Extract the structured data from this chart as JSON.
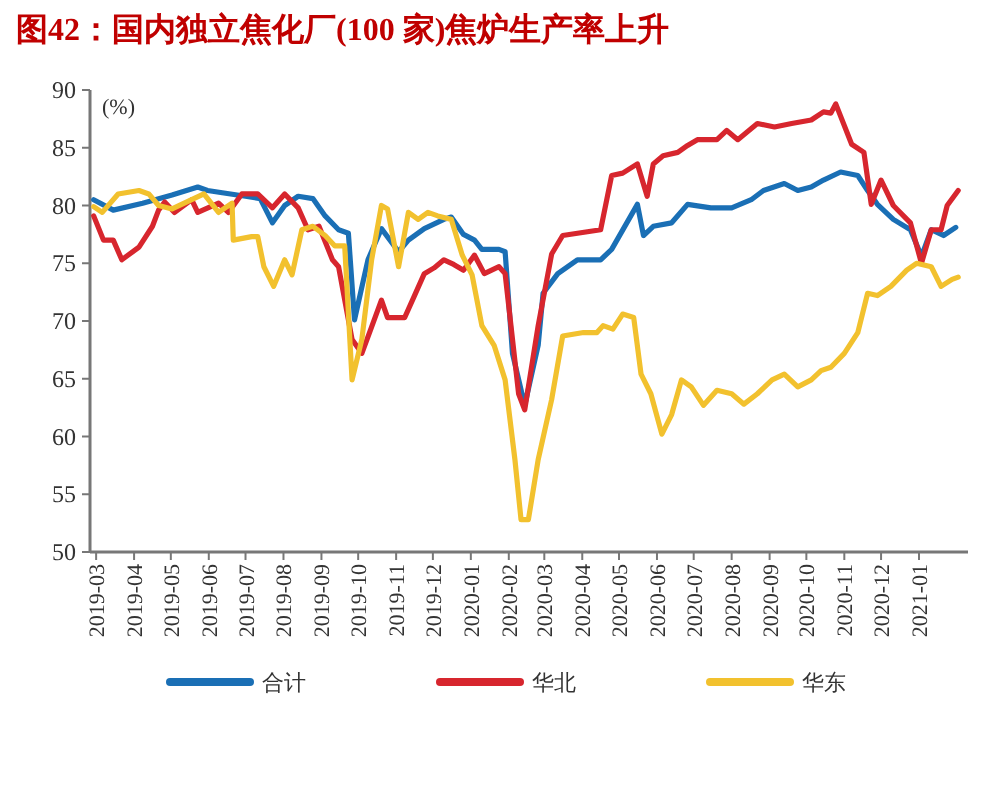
{
  "chart_data": {
    "type": "line",
    "title": "图42：国内独立焦化厂(100 家)焦炉生产率上升",
    "ylabel": "(%)",
    "xlim": [
      "2019-02-24",
      "2021-02-10"
    ],
    "ylim": [
      50,
      90
    ],
    "yticks": [
      50,
      55,
      60,
      65,
      70,
      75,
      80,
      85,
      90
    ],
    "xticks": [
      "2019-03",
      "2019-04",
      "2019-05",
      "2019-06",
      "2019-07",
      "2019-08",
      "2019-09",
      "2019-10",
      "2019-11",
      "2019-12",
      "2020-01",
      "2020-02",
      "2020-03",
      "2020-04",
      "2020-05",
      "2020-06",
      "2020-07",
      "2020-08",
      "2020-09",
      "2020-10",
      "2020-11",
      "2020-12",
      "2021-01"
    ],
    "grid": false,
    "legend": "bottom",
    "marker": "none",
    "line_style": "solid",
    "series": [
      {
        "name": "合计",
        "color": "#1a6fb5",
        "x": [
          "2019-02-27",
          "2019-03-15",
          "2019-04-08",
          "2019-05-02",
          "2019-05-23",
          "2019-05-31",
          "2019-06-12",
          "2019-07-01",
          "2019-07-13",
          "2019-07-23",
          "2019-08-02",
          "2019-08-13",
          "2019-08-25",
          "2019-09-04",
          "2019-09-15",
          "2019-09-23",
          "2019-09-28",
          "2019-10-09",
          "2019-10-20",
          "2019-11-03",
          "2019-11-11",
          "2019-11-24",
          "2019-12-10",
          "2019-12-16",
          "2019-12-26",
          "2020-01-04",
          "2020-01-10",
          "2020-01-24",
          "2020-01-29",
          "2020-02-04",
          "2020-02-14",
          "2020-02-25",
          "2020-02-29",
          "2020-03-12",
          "2020-03-28",
          "2020-04-16",
          "2020-04-25",
          "2020-05-16",
          "2020-05-21",
          "2020-05-29",
          "2020-06-13",
          "2020-06-26",
          "2020-07-15",
          "2020-08-01",
          "2020-08-17",
          "2020-08-27",
          "2020-09-13",
          "2020-09-24",
          "2020-10-05",
          "2020-10-15",
          "2020-10-29",
          "2020-11-12",
          "2020-11-20",
          "2020-11-28",
          "2020-12-11",
          "2020-12-25",
          "2021-01-03",
          "2021-01-11",
          "2021-01-21",
          "2021-01-31"
        ],
        "values": [
          80.5,
          79.6,
          80.2,
          80.9,
          81.6,
          81.3,
          81.1,
          80.8,
          80.6,
          78.5,
          80.0,
          80.8,
          80.6,
          79.1,
          77.9,
          77.6,
          70.1,
          75.3,
          78.0,
          76.0,
          77.0,
          78.0,
          78.8,
          79.0,
          77.5,
          77.0,
          76.2,
          76.2,
          76.0,
          67.2,
          62.7,
          67.9,
          72.4,
          74.1,
          75.3,
          75.3,
          76.2,
          80.1,
          77.4,
          78.2,
          78.5,
          80.1,
          79.8,
          79.8,
          80.5,
          81.3,
          81.9,
          81.3,
          81.6,
          82.2,
          82.9,
          82.6,
          81.3,
          80.1,
          78.8,
          77.9,
          75.6,
          77.9,
          77.4,
          78.1
        ]
      },
      {
        "name": "华北",
        "color": "#d7262e",
        "x": [
          "2019-02-27",
          "2019-03-07",
          "2019-03-15",
          "2019-03-22",
          "2019-04-05",
          "2019-04-16",
          "2019-04-21",
          "2019-04-26",
          "2019-05-04",
          "2019-05-18",
          "2019-05-23",
          "2019-06-09",
          "2019-06-17",
          "2019-06-28",
          "2019-07-11",
          "2019-07-23",
          "2019-08-02",
          "2019-08-13",
          "2019-08-21",
          "2019-08-30",
          "2019-09-10",
          "2019-09-15",
          "2019-09-26",
          "2019-10-04",
          "2019-10-12",
          "2019-10-20",
          "2019-10-25",
          "2019-11-08",
          "2019-11-16",
          "2019-11-24",
          "2019-12-02",
          "2019-12-10",
          "2019-12-18",
          "2019-12-26",
          "2020-01-04",
          "2020-01-12",
          "2020-01-24",
          "2020-01-29",
          "2020-02-09",
          "2020-02-14",
          "2020-02-25",
          "2020-03-07",
          "2020-03-16",
          "2020-04-16",
          "2020-04-25",
          "2020-05-04",
          "2020-05-16",
          "2020-05-24",
          "2020-05-29",
          "2020-06-06",
          "2020-06-18",
          "2020-06-26",
          "2020-07-04",
          "2020-07-20",
          "2020-07-28",
          "2020-08-06",
          "2020-08-22",
          "2020-09-05",
          "2020-09-19",
          "2020-10-05",
          "2020-10-15",
          "2020-10-21",
          "2020-10-25",
          "2020-11-07",
          "2020-11-17",
          "2020-11-23",
          "2020-12-01",
          "2020-12-11",
          "2020-12-25",
          "2021-01-03",
          "2021-01-11",
          "2021-01-19",
          "2021-01-24",
          "2021-02-02"
        ],
        "values": [
          79.1,
          77.0,
          77.0,
          75.3,
          76.4,
          78.2,
          79.6,
          80.3,
          79.4,
          80.5,
          79.4,
          80.2,
          79.4,
          81.0,
          81.0,
          79.8,
          81.0,
          79.8,
          77.9,
          78.2,
          75.3,
          74.7,
          68.4,
          67.2,
          69.5,
          71.8,
          70.3,
          70.3,
          72.2,
          74.1,
          74.6,
          75.3,
          74.9,
          74.4,
          75.7,
          74.1,
          74.7,
          74.1,
          63.7,
          62.3,
          69.6,
          75.8,
          77.4,
          77.9,
          82.6,
          82.8,
          83.6,
          80.8,
          83.6,
          84.3,
          84.6,
          85.2,
          85.7,
          85.7,
          86.5,
          85.7,
          87.1,
          86.8,
          87.1,
          87.4,
          88.1,
          88.0,
          88.8,
          85.3,
          84.6,
          80.1,
          82.2,
          80.0,
          78.5,
          75.0,
          77.9,
          77.9,
          80.0,
          81.3
        ]
      },
      {
        "name": "华东",
        "color": "#f2c12e",
        "x": [
          "2019-02-27",
          "2019-03-06",
          "2019-03-19",
          "2019-04-05",
          "2019-04-13",
          "2019-04-21",
          "2019-05-02",
          "2019-05-18",
          "2019-05-28",
          "2019-06-09",
          "2019-06-20",
          "2019-06-21",
          "2019-07-06",
          "2019-07-11",
          "2019-07-16",
          "2019-07-24",
          "2019-08-02",
          "2019-08-08",
          "2019-08-16",
          "2019-08-25",
          "2019-09-04",
          "2019-09-12",
          "2019-09-20",
          "2019-09-26",
          "2019-10-04",
          "2019-10-12",
          "2019-10-20",
          "2019-10-25",
          "2019-11-03",
          "2019-11-11",
          "2019-11-19",
          "2019-11-27",
          "2019-12-05",
          "2019-12-16",
          "2019-12-25",
          "2020-01-02",
          "2020-01-10",
          "2020-01-20",
          "2020-01-29",
          "2020-02-06",
          "2020-02-11",
          "2020-02-17",
          "2020-02-25",
          "2020-03-07",
          "2020-03-16",
          "2020-04-02",
          "2020-04-13",
          "2020-04-18",
          "2020-04-26",
          "2020-05-04",
          "2020-05-13",
          "2020-05-19",
          "2020-05-27",
          "2020-06-05",
          "2020-06-13",
          "2020-06-21",
          "2020-06-29",
          "2020-07-09",
          "2020-07-20",
          "2020-08-01",
          "2020-08-11",
          "2020-08-22",
          "2020-09-03",
          "2020-09-13",
          "2020-09-24",
          "2020-10-05",
          "2020-10-13",
          "2020-10-21",
          "2020-11-01",
          "2020-11-12",
          "2020-11-20",
          "2020-11-28",
          "2020-12-09",
          "2020-12-22",
          "2020-12-30",
          "2021-01-11",
          "2021-01-19",
          "2021-01-28",
          "2021-02-02"
        ],
        "values": [
          79.9,
          79.4,
          81.0,
          81.3,
          81.0,
          80.0,
          79.7,
          80.5,
          81.0,
          79.4,
          80.2,
          77.0,
          77.3,
          77.3,
          74.7,
          73.0,
          75.3,
          74.0,
          77.9,
          78.2,
          77.4,
          76.5,
          76.5,
          64.9,
          68.4,
          75.3,
          80.0,
          79.7,
          74.7,
          79.4,
          78.8,
          79.4,
          79.1,
          78.8,
          75.7,
          74.0,
          69.6,
          67.9,
          64.9,
          58.0,
          52.8,
          52.8,
          58.0,
          63.2,
          68.7,
          69.0,
          69.0,
          69.6,
          69.3,
          70.6,
          70.3,
          65.4,
          63.7,
          60.2,
          61.9,
          64.9,
          64.3,
          62.7,
          64.0,
          63.7,
          62.8,
          63.7,
          64.9,
          65.4,
          64.3,
          64.9,
          65.7,
          66.0,
          67.2,
          69.0,
          72.4,
          72.2,
          73.0,
          74.4,
          75.0,
          74.7,
          73.0,
          73.6,
          73.8
        ]
      }
    ]
  }
}
